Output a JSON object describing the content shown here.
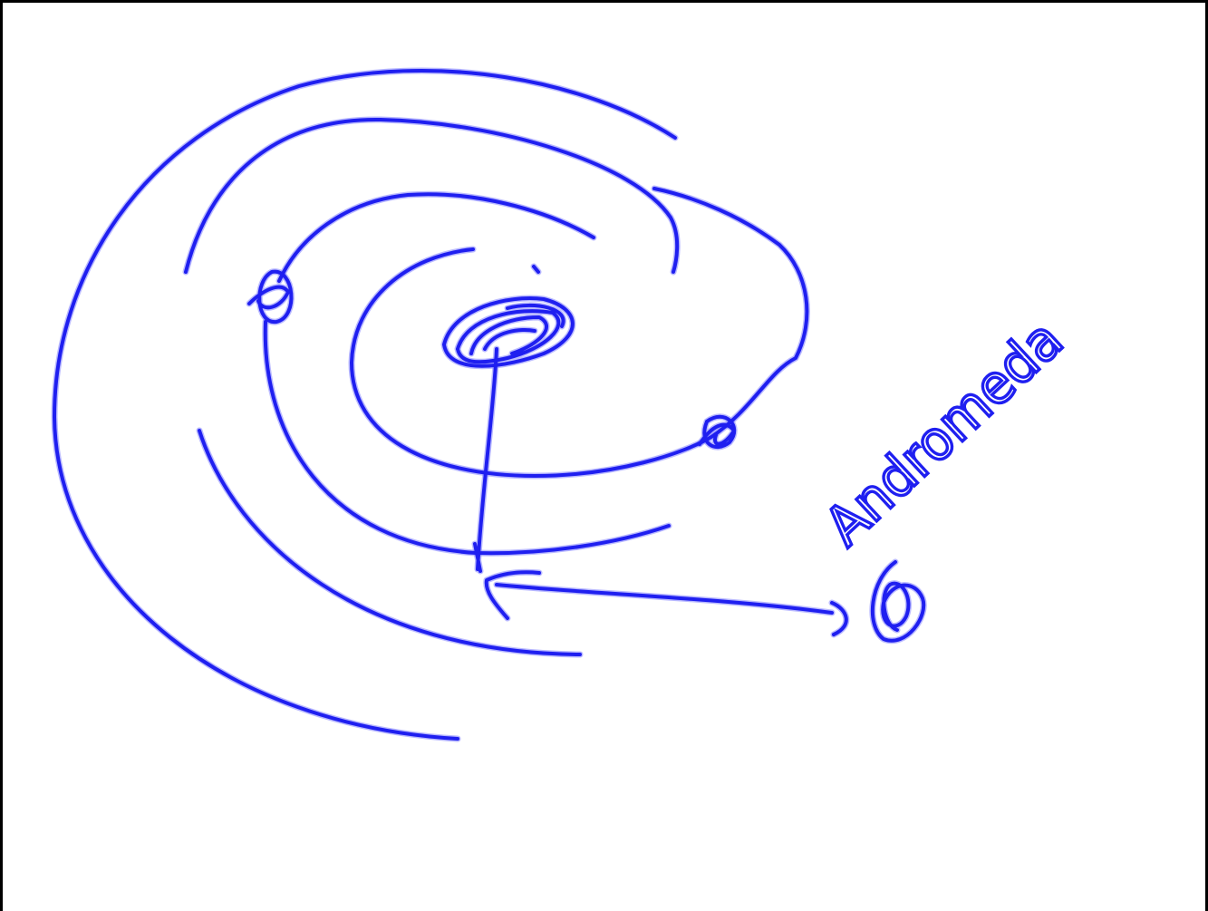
{
  "annotation": {
    "label": "Andromeda"
  }
}
